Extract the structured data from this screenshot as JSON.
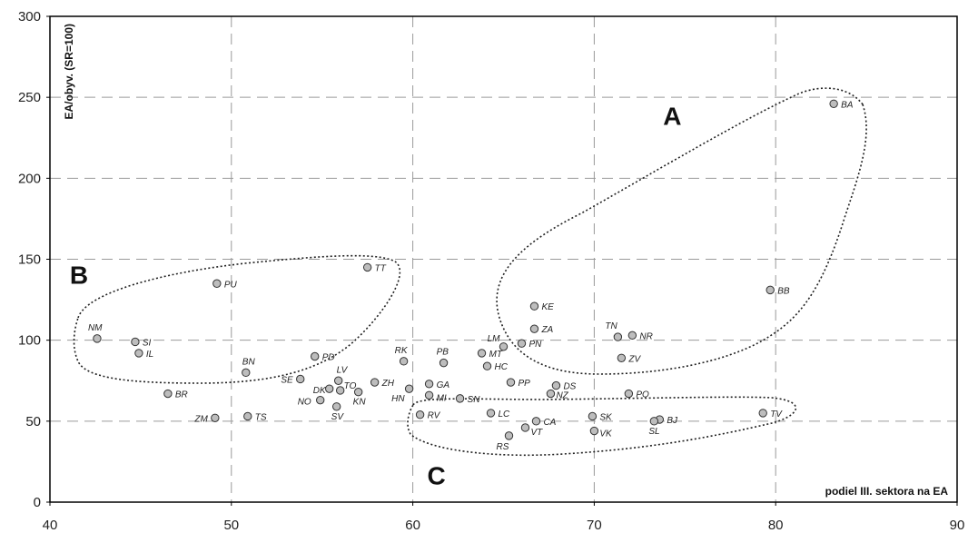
{
  "chart_data": {
    "type": "scatter",
    "xlabel": "podiel III. sektora na EA",
    "ylabel": "EA/obyv. (SR=100)",
    "xlim": [
      40,
      90
    ],
    "ylim": [
      0,
      300
    ],
    "x_ticks": [
      "40",
      "50",
      "60",
      "70",
      "80",
      "90"
    ],
    "y_ticks": [
      "0",
      "50",
      "100",
      "150",
      "200",
      "250",
      "300"
    ],
    "grid": true,
    "marker_color": "#bdbdbd",
    "points": [
      {
        "label": "BA",
        "x": 83.2,
        "y": 246
      },
      {
        "label": "BB",
        "x": 79.7,
        "y": 131
      },
      {
        "label": "TT",
        "x": 57.5,
        "y": 145
      },
      {
        "label": "PU",
        "x": 49.2,
        "y": 135
      },
      {
        "label": "NM",
        "x": 42.6,
        "y": 101
      },
      {
        "label": "SI",
        "x": 44.7,
        "y": 99
      },
      {
        "label": "IL",
        "x": 44.9,
        "y": 92
      },
      {
        "label": "BN",
        "x": 50.8,
        "y": 80
      },
      {
        "label": "PD",
        "x": 54.6,
        "y": 90
      },
      {
        "label": "SE",
        "x": 53.8,
        "y": 76
      },
      {
        "label": "DK",
        "x": 55.4,
        "y": 70
      },
      {
        "label": "LV",
        "x": 55.9,
        "y": 75
      },
      {
        "label": "TO",
        "x": 56.0,
        "y": 69
      },
      {
        "label": "NO",
        "x": 54.9,
        "y": 63
      },
      {
        "label": "SV",
        "x": 55.8,
        "y": 59
      },
      {
        "label": "KN",
        "x": 57.0,
        "y": 68
      },
      {
        "label": "ZH",
        "x": 57.9,
        "y": 74
      },
      {
        "label": "BR",
        "x": 46.5,
        "y": 67
      },
      {
        "label": "ZM",
        "x": 49.1,
        "y": 52
      },
      {
        "label": "TS",
        "x": 50.9,
        "y": 53
      },
      {
        "label": "RK",
        "x": 59.5,
        "y": 87
      },
      {
        "label": "HN",
        "x": 59.8,
        "y": 70
      },
      {
        "label": "PB",
        "x": 61.7,
        "y": 86
      },
      {
        "label": "GA",
        "x": 60.9,
        "y": 73
      },
      {
        "label": "MI",
        "x": 60.9,
        "y": 66
      },
      {
        "label": "SN",
        "x": 62.6,
        "y": 64
      },
      {
        "label": "RV",
        "x": 60.4,
        "y": 54
      },
      {
        "label": "LM",
        "x": 65.0,
        "y": 96
      },
      {
        "label": "MT",
        "x": 63.8,
        "y": 92
      },
      {
        "label": "HC",
        "x": 64.1,
        "y": 84
      },
      {
        "label": "PN",
        "x": 66.0,
        "y": 98
      },
      {
        "label": "KE",
        "x": 66.7,
        "y": 121
      },
      {
        "label": "ZA",
        "x": 66.7,
        "y": 107
      },
      {
        "label": "PP",
        "x": 65.4,
        "y": 74
      },
      {
        "label": "DS",
        "x": 67.9,
        "y": 72
      },
      {
        "label": "NZ",
        "x": 67.6,
        "y": 67
      },
      {
        "label": "LC",
        "x": 64.3,
        "y": 55
      },
      {
        "label": "CA",
        "x": 66.8,
        "y": 50
      },
      {
        "label": "VT",
        "x": 66.2,
        "y": 46
      },
      {
        "label": "RS",
        "x": 65.3,
        "y": 41
      },
      {
        "label": "SK",
        "x": 69.9,
        "y": 53
      },
      {
        "label": "VK",
        "x": 70.0,
        "y": 44
      },
      {
        "label": "TN",
        "x": 71.3,
        "y": 102
      },
      {
        "label": "NR",
        "x": 72.1,
        "y": 103
      },
      {
        "label": "ZV",
        "x": 71.5,
        "y": 89
      },
      {
        "label": "PO",
        "x": 71.9,
        "y": 67
      },
      {
        "label": "BJ",
        "x": 73.6,
        "y": 51
      },
      {
        "label": "SL",
        "x": 73.3,
        "y": 50
      },
      {
        "label": "TV",
        "x": 79.3,
        "y": 55
      }
    ],
    "groups": [
      {
        "label": "A",
        "label_x": 74.3,
        "label_y": 233
      },
      {
        "label": "B",
        "label_x": 41.6,
        "label_y": 135
      },
      {
        "label": "C",
        "label_x": 61.3,
        "label_y": 11
      }
    ]
  }
}
